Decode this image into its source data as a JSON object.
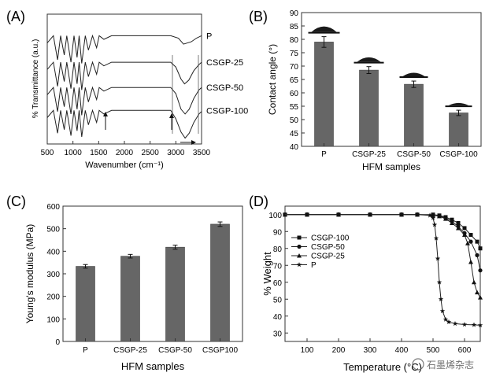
{
  "chart_data": [
    {
      "panel": "(A)",
      "type": "line",
      "xlabel": "Wavenumber (cm⁻¹)",
      "ylabel": "% Transmittance (a.u.)",
      "xlim": [
        500,
        3500
      ],
      "xticks": [
        500,
        1000,
        1500,
        2000,
        2500,
        3000,
        3500
      ],
      "series": [
        {
          "name": "P",
          "baseline": 0.86,
          "points": [
            [
              500,
              0.8
            ],
            [
              620,
              0.86
            ],
            [
              700,
              0.66
            ],
            [
              760,
              0.86
            ],
            [
              830,
              0.7
            ],
            [
              880,
              0.86
            ],
            [
              960,
              0.64
            ],
            [
              1020,
              0.86
            ],
            [
              1080,
              0.68
            ],
            [
              1120,
              0.86
            ],
            [
              1170,
              0.63
            ],
            [
              1240,
              0.86
            ],
            [
              1300,
              0.74
            ],
            [
              1380,
              0.86
            ],
            [
              1460,
              0.76
            ],
            [
              1510,
              0.86
            ],
            [
              1600,
              0.83
            ],
            [
              1750,
              0.86
            ],
            [
              2400,
              0.86
            ],
            [
              2900,
              0.86
            ],
            [
              3050,
              0.84
            ],
            [
              3150,
              0.79
            ],
            [
              3300,
              0.81
            ],
            [
              3400,
              0.84
            ],
            [
              3500,
              0.86
            ]
          ]
        },
        {
          "name": "CSGP-25",
          "baseline": 0.64,
          "points": [
            [
              500,
              0.58
            ],
            [
              620,
              0.64
            ],
            [
              700,
              0.44
            ],
            [
              760,
              0.64
            ],
            [
              830,
              0.48
            ],
            [
              880,
              0.64
            ],
            [
              960,
              0.42
            ],
            [
              1020,
              0.64
            ],
            [
              1080,
              0.46
            ],
            [
              1120,
              0.64
            ],
            [
              1170,
              0.41
            ],
            [
              1240,
              0.64
            ],
            [
              1300,
              0.52
            ],
            [
              1380,
              0.64
            ],
            [
              1460,
              0.54
            ],
            [
              1510,
              0.64
            ],
            [
              1600,
              0.61
            ],
            [
              1750,
              0.64
            ],
            [
              2400,
              0.64
            ],
            [
              2900,
              0.64
            ],
            [
              3000,
              0.6
            ],
            [
              3100,
              0.5
            ],
            [
              3170,
              0.46
            ],
            [
              3250,
              0.49
            ],
            [
              3350,
              0.57
            ],
            [
              3450,
              0.62
            ],
            [
              3500,
              0.64
            ]
          ]
        },
        {
          "name": "CSGP-50",
          "baseline": 0.43,
          "points": [
            [
              500,
              0.37
            ],
            [
              620,
              0.43
            ],
            [
              700,
              0.23
            ],
            [
              760,
              0.43
            ],
            [
              830,
              0.27
            ],
            [
              880,
              0.43
            ],
            [
              960,
              0.21
            ],
            [
              1020,
              0.43
            ],
            [
              1080,
              0.25
            ],
            [
              1120,
              0.43
            ],
            [
              1170,
              0.2
            ],
            [
              1240,
              0.43
            ],
            [
              1300,
              0.31
            ],
            [
              1380,
              0.43
            ],
            [
              1460,
              0.33
            ],
            [
              1510,
              0.43
            ],
            [
              1600,
              0.4
            ],
            [
              1750,
              0.43
            ],
            [
              2400,
              0.43
            ],
            [
              2900,
              0.43
            ],
            [
              3000,
              0.38
            ],
            [
              3100,
              0.25
            ],
            [
              3180,
              0.21
            ],
            [
              3260,
              0.25
            ],
            [
              3350,
              0.34
            ],
            [
              3450,
              0.41
            ],
            [
              3500,
              0.43
            ]
          ]
        },
        {
          "name": "CSGP-100",
          "baseline": 0.24,
          "points": [
            [
              500,
              0.18
            ],
            [
              620,
              0.24
            ],
            [
              700,
              0.05
            ],
            [
              760,
              0.24
            ],
            [
              830,
              0.08
            ],
            [
              880,
              0.24
            ],
            [
              960,
              0.03
            ],
            [
              1020,
              0.24
            ],
            [
              1080,
              0.07
            ],
            [
              1120,
              0.24
            ],
            [
              1170,
              0.02
            ],
            [
              1240,
              0.24
            ],
            [
              1300,
              0.12
            ],
            [
              1380,
              0.24
            ],
            [
              1460,
              0.14
            ],
            [
              1510,
              0.24
            ],
            [
              1600,
              0.21
            ],
            [
              1750,
              0.24
            ],
            [
              2400,
              0.24
            ],
            [
              2900,
              0.24
            ],
            [
              3000,
              0.17
            ],
            [
              3100,
              0.06
            ],
            [
              3180,
              0.01
            ],
            [
              3260,
              0.05
            ],
            [
              3350,
              0.14
            ],
            [
              3450,
              0.21
            ],
            [
              3500,
              0.23
            ]
          ]
        }
      ]
    },
    {
      "panel": "(B)",
      "type": "bar",
      "xlabel": "HFM samples",
      "ylabel": "Contact angle (°)",
      "ylim": [
        40,
        90
      ],
      "yticks": [
        40,
        45,
        50,
        55,
        60,
        65,
        70,
        75,
        80,
        85,
        90
      ],
      "categories": [
        "P",
        "CSGP-25",
        "CSGP-50",
        "CSGP-100"
      ],
      "values": [
        79,
        68.5,
        63.2,
        52.5
      ],
      "errors": [
        2.0,
        1.3,
        1.2,
        1.0
      ]
    },
    {
      "panel": "(C)",
      "type": "bar",
      "xlabel": "HFM samples",
      "ylabel": "Young's modulus (MPa)",
      "ylim": [
        0,
        600
      ],
      "yticks": [
        0,
        100,
        200,
        300,
        400,
        500,
        600
      ],
      "categories": [
        "P",
        "CSGP-25",
        "CSGP-50",
        "CSGP100"
      ],
      "values": [
        333,
        378,
        418,
        520
      ],
      "errors": [
        8,
        8,
        9,
        10
      ]
    },
    {
      "panel": "(D)",
      "type": "line",
      "xlabel": "Temperature (°C)",
      "ylabel": "% Weight",
      "xlim": [
        30,
        650
      ],
      "ylim": [
        25,
        105
      ],
      "xticks": [
        100,
        200,
        300,
        400,
        500,
        600
      ],
      "yticks": [
        30,
        40,
        50,
        60,
        70,
        80,
        90,
        100
      ],
      "legend_position": "middle-left",
      "series": [
        {
          "name": "CSGP-100",
          "marker": "square",
          "x": [
            30,
            100,
            200,
            300,
            400,
            450,
            500,
            520,
            540,
            560,
            580,
            600,
            620,
            640,
            650
          ],
          "y": [
            100,
            100,
            100,
            100,
            100,
            100,
            100,
            99.5,
            98.5,
            97,
            95,
            92,
            88,
            84,
            80
          ]
        },
        {
          "name": "CSGP-50",
          "marker": "circle",
          "x": [
            30,
            100,
            200,
            300,
            400,
            450,
            500,
            520,
            540,
            560,
            580,
            600,
            620,
            640,
            650
          ],
          "y": [
            100,
            100,
            100,
            100,
            100,
            100,
            99.8,
            99.3,
            98,
            96,
            93,
            89,
            84,
            76,
            67
          ]
        },
        {
          "name": "CSGP-25",
          "marker": "triangle",
          "x": [
            30,
            100,
            200,
            300,
            400,
            450,
            500,
            520,
            540,
            560,
            580,
            600,
            610,
            620,
            630,
            640,
            650
          ],
          "y": [
            100,
            100,
            100,
            100,
            100,
            100,
            99.7,
            99,
            97.5,
            95,
            92,
            88,
            83,
            72,
            60,
            54,
            51
          ]
        },
        {
          "name": "P",
          "marker": "star",
          "x": [
            30,
            100,
            200,
            300,
            400,
            450,
            490,
            500,
            505,
            510,
            515,
            520,
            525,
            530,
            540,
            550,
            570,
            600,
            630,
            650
          ],
          "y": [
            100,
            100,
            100,
            100,
            100,
            100,
            99.5,
            98,
            94,
            86,
            74,
            60,
            50,
            43,
            38,
            36.5,
            35.5,
            35,
            34.8,
            34.6
          ]
        }
      ]
    }
  ],
  "labels": {
    "panel_a": "(A)",
    "panel_b": "(B)",
    "panel_c": "(C)",
    "panel_d": "(D)",
    "a_xlabel": "Wavenumber (cm⁻¹)",
    "a_ylabel": "% Transmittance (a.u.)",
    "b_xlabel": "HFM samples",
    "b_ylabel": "Contact angle (°)",
    "c_xlabel": "HFM samples",
    "c_ylabel": "Young's modulus (MPa)",
    "d_xlabel": "Temperature (°C)",
    "d_ylabel": "% Weight",
    "watermark": "石墨烯杂志"
  },
  "colors": {
    "bar": "#666666",
    "axis": "#333333",
    "line": "#222222",
    "droplet": "#1a1a1a"
  }
}
